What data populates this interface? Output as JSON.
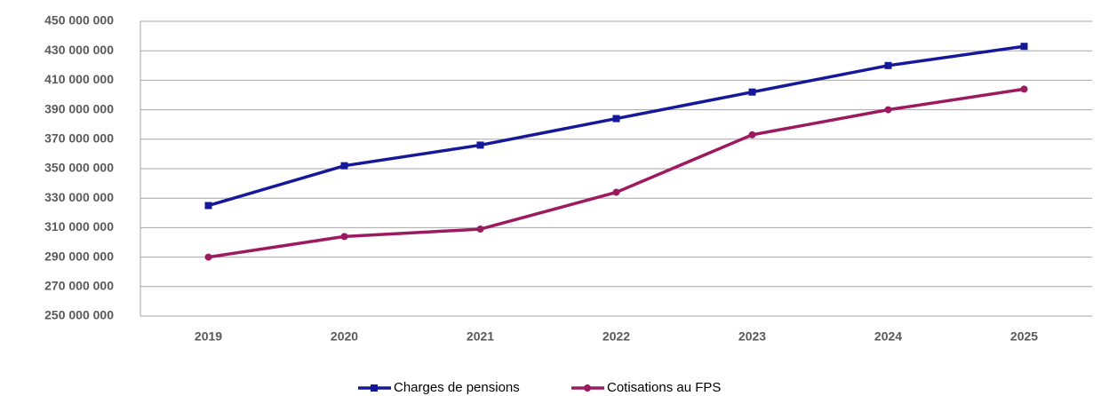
{
  "chart_data": {
    "type": "line",
    "categories": [
      "2019",
      "2020",
      "2021",
      "2022",
      "2023",
      "2024",
      "2025"
    ],
    "series": [
      {
        "name": "Charges de pensions",
        "color": "#16189a",
        "marker": "square",
        "values": [
          325000000,
          352000000,
          366000000,
          384000000,
          402000000,
          420000000,
          433000000
        ]
      },
      {
        "name": "Cotisations au FPS",
        "color": "#9c1a60",
        "marker": "circle",
        "values": [
          290000000,
          304000000,
          309000000,
          334000000,
          373000000,
          390000000,
          404000000
        ]
      }
    ],
    "ylim": [
      250000000,
      450000000
    ],
    "yticks": [
      {
        "value": 250000000,
        "label": "250 000 000"
      },
      {
        "value": 270000000,
        "label": "270 000 000"
      },
      {
        "value": 290000000,
        "label": "290 000 000"
      },
      {
        "value": 310000000,
        "label": "310 000 000"
      },
      {
        "value": 330000000,
        "label": "330 000 000"
      },
      {
        "value": 350000000,
        "label": "350 000 000"
      },
      {
        "value": 370000000,
        "label": "370 000 000"
      },
      {
        "value": 390000000,
        "label": "390 000 000"
      },
      {
        "value": 410000000,
        "label": "410 000 000"
      },
      {
        "value": 430000000,
        "label": "430 000 000"
      },
      {
        "value": 450000000,
        "label": "450 000 000"
      }
    ],
    "grid": true,
    "legend": "bottom"
  }
}
